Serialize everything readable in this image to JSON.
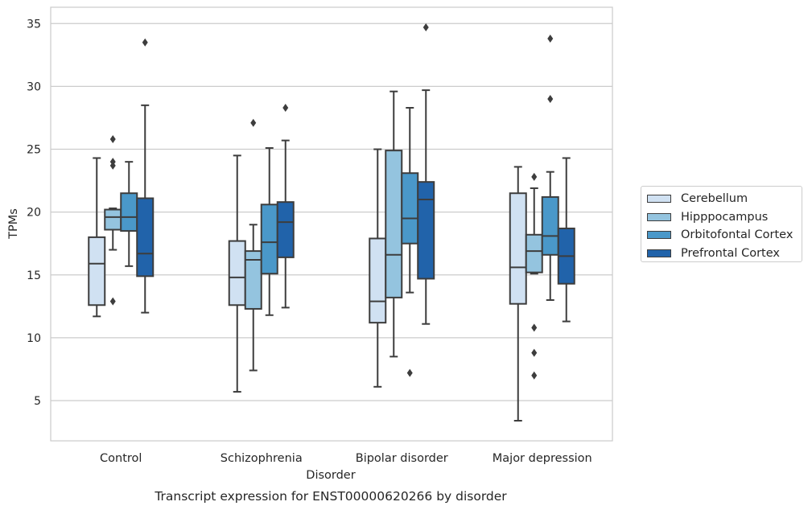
{
  "chart_data": {
    "type": "box",
    "title": "Transcript expression for ENST00000620266 by disorder",
    "xlabel": "Disorder",
    "ylabel": "TPMs",
    "ylim": [
      1.8,
      36.3
    ],
    "yticks": [
      5,
      10,
      15,
      20,
      25,
      30,
      35
    ],
    "grid": "horizontal",
    "legend_position": "right",
    "categories": [
      "Control",
      "Schizophrenia",
      "Bipolar disorder",
      "Major depression"
    ],
    "series": [
      {
        "name": "Cerebellum",
        "color": "#d0e1f2",
        "boxes": [
          {
            "whislo": 11.7,
            "q1": 12.6,
            "med": 15.9,
            "q3": 18.0,
            "whishi": 24.3,
            "fliers": []
          },
          {
            "whislo": 5.7,
            "q1": 12.6,
            "med": 14.8,
            "q3": 17.7,
            "whishi": 24.5,
            "fliers": []
          },
          {
            "whislo": 6.1,
            "q1": 11.2,
            "med": 12.9,
            "q3": 17.9,
            "whishi": 25.0,
            "fliers": []
          },
          {
            "whislo": 3.4,
            "q1": 12.7,
            "med": 15.6,
            "q3": 21.5,
            "whishi": 23.6,
            "fliers": []
          }
        ]
      },
      {
        "name": "Hipppocampus",
        "color": "#94c4df",
        "boxes": [
          {
            "whislo": 17.0,
            "q1": 18.6,
            "med": 19.6,
            "q3": 20.2,
            "whishi": 20.3,
            "fliers": [
              12.9,
              23.7,
              24.0,
              25.8
            ]
          },
          {
            "whislo": 7.4,
            "q1": 12.3,
            "med": 16.2,
            "q3": 16.9,
            "whishi": 19.0,
            "fliers": [
              27.1
            ]
          },
          {
            "whislo": 8.5,
            "q1": 13.2,
            "med": 16.6,
            "q3": 24.9,
            "whishi": 29.6,
            "fliers": []
          },
          {
            "whislo": 15.1,
            "q1": 15.2,
            "med": 16.9,
            "q3": 18.2,
            "whishi": 21.9,
            "fliers": [
              7.0,
              8.8,
              10.8,
              22.8
            ]
          }
        ]
      },
      {
        "name": "Orbitofontal Cortex",
        "color": "#4a98c9",
        "boxes": [
          {
            "whislo": 15.7,
            "q1": 18.5,
            "med": 19.6,
            "q3": 21.5,
            "whishi": 24.0,
            "fliers": []
          },
          {
            "whislo": 11.8,
            "q1": 15.1,
            "med": 17.6,
            "q3": 20.6,
            "whishi": 25.1,
            "fliers": []
          },
          {
            "whislo": 13.6,
            "q1": 17.5,
            "med": 19.5,
            "q3": 23.1,
            "whishi": 28.3,
            "fliers": [
              7.2
            ]
          },
          {
            "whislo": 13.0,
            "q1": 16.6,
            "med": 18.1,
            "q3": 21.2,
            "whishi": 23.2,
            "fliers": [
              29.0,
              33.8
            ]
          }
        ]
      },
      {
        "name": "Prefrontal Cortex",
        "color": "#2163aa",
        "boxes": [
          {
            "whislo": 12.0,
            "q1": 14.9,
            "med": 16.7,
            "q3": 21.1,
            "whishi": 28.5,
            "fliers": [
              33.5
            ]
          },
          {
            "whislo": 12.4,
            "q1": 16.4,
            "med": 19.2,
            "q3": 20.8,
            "whishi": 25.7,
            "fliers": [
              28.3
            ]
          },
          {
            "whislo": 11.1,
            "q1": 14.7,
            "med": 21.0,
            "q3": 22.4,
            "whishi": 29.7,
            "fliers": [
              34.7
            ]
          },
          {
            "whislo": 11.3,
            "q1": 14.3,
            "med": 16.5,
            "q3": 18.7,
            "whishi": 24.3,
            "fliers": []
          }
        ]
      }
    ]
  }
}
